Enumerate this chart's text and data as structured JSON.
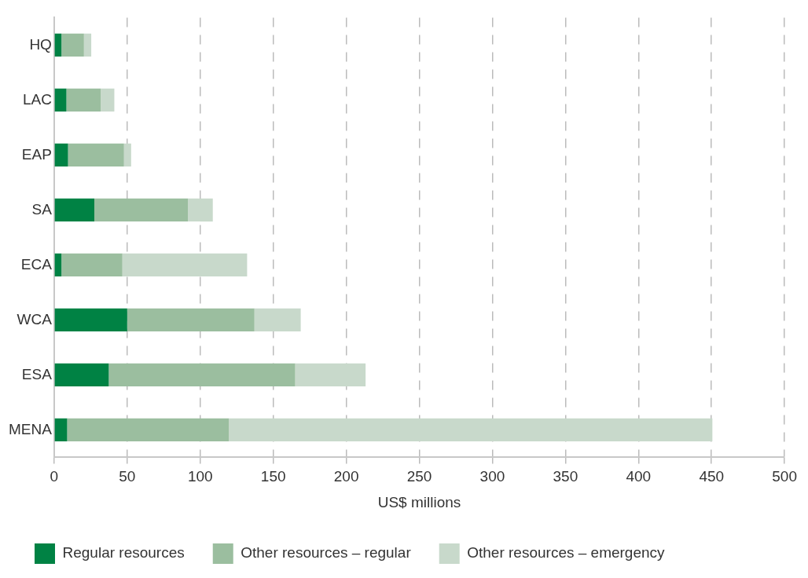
{
  "chart_data": {
    "type": "bar",
    "orientation": "horizontal",
    "stacked": true,
    "xlabel": "US$ millions",
    "categories": [
      "HQ",
      "LAC",
      "EAP",
      "SA",
      "ECA",
      "WCA",
      "ESA",
      "MENA"
    ],
    "series": [
      {
        "name": "Regular resources",
        "color": "#008244",
        "values": [
          5,
          8.4,
          9.5,
          27.5,
          5,
          50,
          37.4,
          8.9
        ]
      },
      {
        "name": "Other resources – regular",
        "color": "#9bbe9f",
        "values": [
          15.4,
          23.5,
          38.3,
          64.1,
          41.7,
          87.1,
          127.6,
          110.7
        ]
      },
      {
        "name": "Other resources – emergency",
        "color": "#c8d9cb",
        "values": [
          5,
          9.3,
          4.9,
          17,
          85.4,
          31.7,
          48.2,
          331
        ]
      }
    ],
    "xlim": [
      0,
      500
    ],
    "xticks": [
      0,
      50,
      100,
      150,
      200,
      250,
      300,
      350,
      400,
      450,
      500
    ],
    "grid": "x",
    "legend": "bottom"
  }
}
